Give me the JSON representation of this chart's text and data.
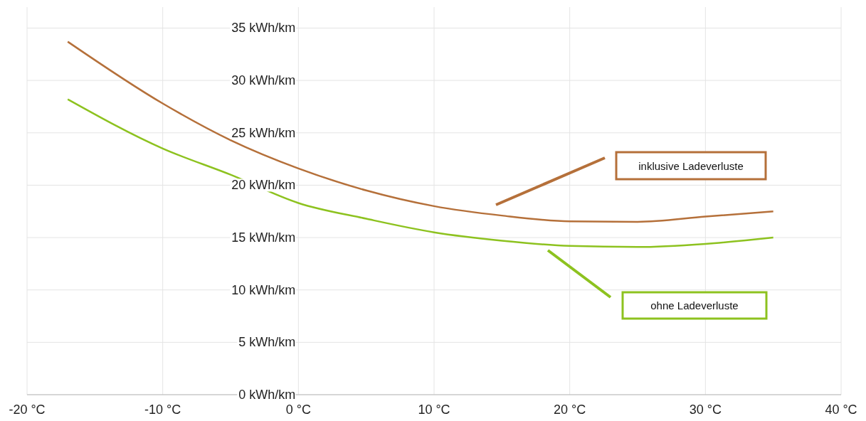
{
  "chart_data": {
    "type": "line",
    "x": [
      -17,
      -10,
      -5,
      0,
      5,
      10,
      15,
      20,
      25,
      30,
      35
    ],
    "series": [
      {
        "name": "inklusive Ladeverluste",
        "color": "#b5703a",
        "values": [
          33.7,
          27.8,
          24.3,
          21.6,
          19.5,
          18.0,
          17.1,
          16.55,
          16.5,
          17.0,
          17.5
        ]
      },
      {
        "name": "ohne Ladeverluste",
        "color": "#8dc21f",
        "values": [
          28.2,
          23.5,
          21.0,
          18.3,
          16.8,
          15.5,
          14.7,
          14.2,
          14.1,
          14.4,
          15.0
        ]
      }
    ],
    "xlim": [
      -20,
      40
    ],
    "xticks": [
      {
        "value": -20,
        "label": "-20 °C"
      },
      {
        "value": -10,
        "label": "-10 °C"
      },
      {
        "value": 0,
        "label": "0 °C"
      },
      {
        "value": 10,
        "label": "10 °C"
      },
      {
        "value": 20,
        "label": "20 °C"
      },
      {
        "value": 30,
        "label": "30 °C"
      },
      {
        "value": 40,
        "label": "40 °C"
      }
    ],
    "ylim": [
      0,
      37
    ],
    "yticks": [
      {
        "value": 0,
        "label": "0 kWh/km"
      },
      {
        "value": 5,
        "label": "5 kWh/km"
      },
      {
        "value": 10,
        "label": "10 kWh/km"
      },
      {
        "value": 15,
        "label": "15 kWh/km"
      },
      {
        "value": 20,
        "label": "20 kWh/km"
      },
      {
        "value": 25,
        "label": "25 kWh/km"
      },
      {
        "value": 30,
        "label": "30 kWh/km"
      },
      {
        "value": 35,
        "label": "35 kWh/km"
      }
    ],
    "grid": true,
    "marker": "none",
    "line_style": "solid"
  }
}
